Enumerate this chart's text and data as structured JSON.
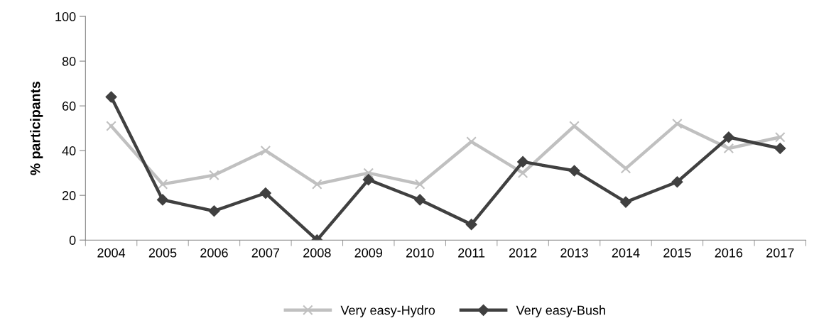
{
  "chart_data": {
    "type": "line",
    "ylabel": "% participants",
    "categories": [
      "2004",
      "2005",
      "2006",
      "2007",
      "2008",
      "2009",
      "2010",
      "2011",
      "2012",
      "2013",
      "2014",
      "2015",
      "2016",
      "2017"
    ],
    "series": [
      {
        "name": "Very easy-Hydro",
        "color": "#c0c0c0",
        "marker": "cross",
        "values": [
          51,
          25,
          29,
          40,
          25,
          30,
          25,
          44,
          30,
          51,
          32,
          52,
          41,
          46
        ]
      },
      {
        "name": "Very easy-Bush",
        "color": "#404040",
        "marker": "diamond",
        "values": [
          64,
          18,
          13,
          21,
          0,
          27,
          18,
          7,
          35,
          31,
          17,
          26,
          46,
          41
        ]
      }
    ],
    "ylim": [
      0,
      100
    ],
    "yticks": [
      0,
      20,
      40,
      60,
      80,
      100
    ],
    "grid": false,
    "legend": "bottom",
    "line_style": "solid"
  }
}
